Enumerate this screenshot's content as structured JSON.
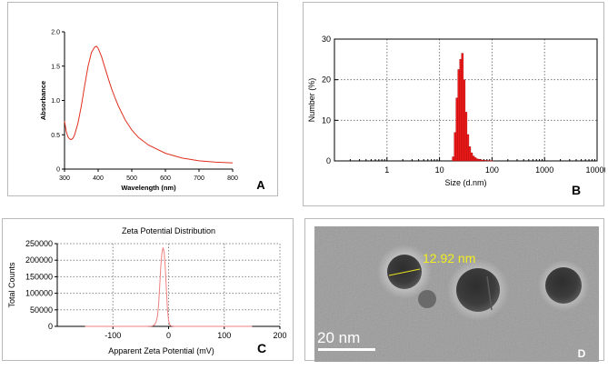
{
  "figure": {
    "panels": [
      {
        "id": "A",
        "letter": "A"
      },
      {
        "id": "B",
        "letter": "B"
      },
      {
        "id": "C",
        "letter": "C"
      },
      {
        "id": "D",
        "letter": "D"
      }
    ]
  },
  "chart_data": [
    {
      "id": "A",
      "type": "line",
      "title": "",
      "xlabel": "Wavelength (nm)",
      "ylabel": "Absorbance",
      "xlim": [
        300,
        800
      ],
      "ylim": [
        0,
        2.0
      ],
      "xticks": [
        "300",
        "400",
        "500",
        "600",
        "700",
        "800"
      ],
      "yticks": [
        "0",
        "0.5",
        "1.0",
        "1.5",
        "2.0"
      ],
      "color": "#e0301e",
      "series": [
        {
          "name": "Absorbance",
          "x": [
            300,
            305,
            310,
            315,
            320,
            325,
            330,
            340,
            350,
            360,
            370,
            380,
            390,
            395,
            400,
            410,
            420,
            430,
            440,
            450,
            460,
            480,
            500,
            520,
            550,
            600,
            650,
            700,
            750,
            800
          ],
          "y": [
            0.7,
            0.55,
            0.47,
            0.44,
            0.43,
            0.45,
            0.5,
            0.67,
            0.92,
            1.22,
            1.5,
            1.7,
            1.78,
            1.79,
            1.76,
            1.64,
            1.48,
            1.32,
            1.17,
            1.04,
            0.92,
            0.72,
            0.57,
            0.46,
            0.35,
            0.23,
            0.16,
            0.12,
            0.1,
            0.09
          ]
        }
      ]
    },
    {
      "id": "B",
      "type": "bar",
      "title": "",
      "xlabel": "Size (d.nm)",
      "ylabel": "Number (%)",
      "xscale": "log",
      "xlim": [
        0.1,
        10000
      ],
      "ylim": [
        0,
        30
      ],
      "xticks": [
        "1",
        "10",
        "100",
        "1000",
        "10000"
      ],
      "yticks": [
        "0",
        "10",
        "20",
        "30"
      ],
      "color": "#ee1c1c",
      "x": [
        18.2,
        19.8,
        21.4,
        23.2,
        25.2,
        27.3,
        29.6,
        32.1,
        34.8,
        37.7,
        40.9,
        44.4,
        48.1,
        52.2,
        56.6,
        61.4,
        66.6,
        72.2,
        78.3,
        84.9,
        92.1,
        99.9
      ],
      "values": [
        1.0,
        7.0,
        15.5,
        22.5,
        25.0,
        26.5,
        20.0,
        12.0,
        6.5,
        3.5,
        2.0,
        1.2,
        0.8,
        0.5,
        0.4,
        0.3,
        0.2,
        0.15,
        0.1,
        0.1,
        0.05,
        0.05
      ]
    },
    {
      "id": "C",
      "type": "line",
      "title": "Zeta Potential Distribution",
      "xlabel": "Apparent Zeta Potential (mV)",
      "ylabel": "Total Counts",
      "xlim": [
        -200,
        200
      ],
      "ylim": [
        0,
        250000
      ],
      "xticks": [
        "-100",
        "0",
        "100",
        "200"
      ],
      "yticks": [
        "0",
        "50000",
        "100000",
        "150000",
        "200000",
        "250000"
      ],
      "color": "#f08080",
      "series": [
        {
          "name": "Total Counts",
          "x": [
            -150,
            -40,
            -30,
            -25,
            -22,
            -20,
            -18,
            -16,
            -14,
            -12,
            -10,
            -8,
            -6,
            -4,
            -2,
            0,
            2,
            5,
            10,
            20,
            40,
            150
          ],
          "y": [
            0,
            0,
            600,
            5000,
            15000,
            32000,
            65000,
            120000,
            180000,
            220000,
            238000,
            225000,
            180000,
            110000,
            50000,
            18000,
            5000,
            1000,
            0,
            0,
            0,
            0
          ]
        }
      ]
    }
  ],
  "tem": {
    "particle_label": "12.92 nm",
    "scale_label": "20 nm"
  }
}
